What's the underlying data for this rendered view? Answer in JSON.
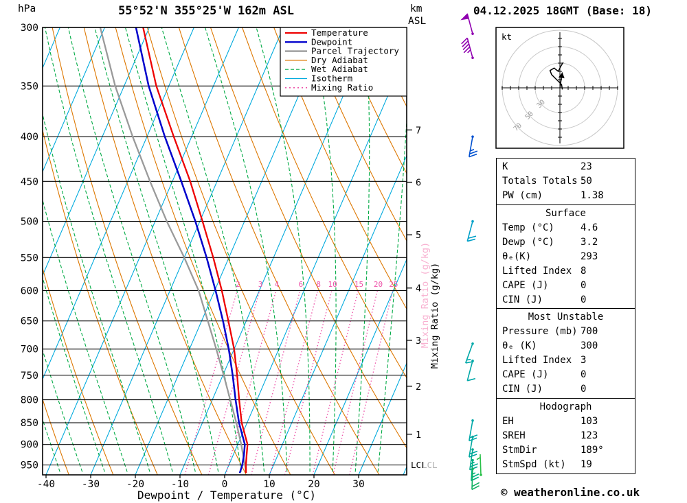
{
  "header": {
    "pressure_unit": "hPa",
    "station_title": "55°52'N 355°25'W 162m ASL",
    "altitude_unit_km": "km",
    "altitude_unit_asl": "ASL",
    "datetime_title": "04.12.2025 18GMT (Base: 18)"
  },
  "axes": {
    "x_title": "Dewpoint / Temperature (°C)",
    "x_ticks": [
      -40,
      -30,
      -20,
      -10,
      0,
      10,
      20,
      30
    ],
    "pressure_ticks": [
      300,
      350,
      400,
      450,
      500,
      550,
      600,
      650,
      700,
      750,
      800,
      850,
      900,
      950
    ],
    "km_ticks": [
      {
        "km": 1,
        "p": 876
      },
      {
        "km": 2,
        "p": 772
      },
      {
        "km": 3,
        "p": 684
      },
      {
        "km": 4,
        "p": 596
      },
      {
        "km": 5,
        "p": 518
      },
      {
        "km": 6,
        "p": 451
      },
      {
        "km": 7,
        "p": 393
      }
    ],
    "lcl_label": "LCL",
    "lcl_pressure": 949,
    "mixing_axis_label": "Mixing Ratio (g/kg)",
    "mixing_ratio_lines": [
      2,
      3,
      4,
      6,
      8,
      10,
      15,
      20,
      25
    ]
  },
  "legend": {
    "items": [
      {
        "label": "Temperature",
        "color": "#ee0000",
        "dash": "",
        "width": 2.2
      },
      {
        "label": "Dewpoint",
        "color": "#0000cc",
        "dash": "",
        "width": 2.4
      },
      {
        "label": "Parcel Trajectory",
        "color": "#9a9a9a",
        "dash": "",
        "width": 2.4
      },
      {
        "label": "Dry Adiabat",
        "color": "#dd7700",
        "dash": "",
        "width": 1.2
      },
      {
        "label": "Wet Adiabat",
        "color": "#00aa44",
        "dash": "5 3",
        "width": 1.2
      },
      {
        "label": "Isotherm",
        "color": "#00aadd",
        "dash": "",
        "width": 1.2
      },
      {
        "label": "Mixing Ratio",
        "color": "#ee55aa",
        "dash": "2 4",
        "width": 1.6
      }
    ]
  },
  "chart_data": {
    "type": "line",
    "subtype": "skew-t-log-p",
    "pressure_range_hpa": [
      300,
      975
    ],
    "temp_axis_range_c": [
      -40,
      38
    ],
    "temperature_profile": {
      "pressure_hpa": [
        970,
        950,
        925,
        900,
        850,
        800,
        750,
        700,
        650,
        600,
        550,
        500,
        450,
        400,
        350,
        300
      ],
      "temp_c": [
        4.6,
        3.8,
        3.0,
        2.2,
        -1.2,
        -4.0,
        -6.8,
        -10.0,
        -14.0,
        -18.4,
        -23.5,
        -29.4,
        -36.0,
        -44.0,
        -52.8,
        -61.4
      ]
    },
    "dewpoint_profile": {
      "pressure_hpa": [
        970,
        950,
        925,
        900,
        850,
        800,
        750,
        700,
        650,
        600,
        550,
        500,
        450,
        400,
        350,
        300
      ],
      "temp_c": [
        3.2,
        3.0,
        2.4,
        1.6,
        -1.8,
        -4.8,
        -7.8,
        -11.2,
        -15.2,
        -19.8,
        -25.0,
        -31.0,
        -38.0,
        -46.0,
        -54.5,
        -63.0
      ]
    },
    "parcel_profile": {
      "pressure_hpa": [
        970,
        950,
        925,
        900,
        850,
        800,
        750,
        700,
        650,
        600,
        550,
        500,
        450,
        400,
        350,
        300
      ],
      "temp_c": [
        4.6,
        3.6,
        2.2,
        0.8,
        -2.4,
        -6.0,
        -9.8,
        -14.0,
        -18.6,
        -23.6,
        -30.0,
        -37.4,
        -45.0,
        -53.2,
        -62.0,
        -71.0
      ]
    },
    "wind_barbs": [
      {
        "p": 305,
        "dir": 345,
        "spd": 50,
        "color": "#9000b0"
      },
      {
        "p": 325,
        "dir": 345,
        "spd": 45,
        "color": "#9000b0"
      },
      {
        "p": 400,
        "dir": 190,
        "spd": 25,
        "color": "#0050d0"
      },
      {
        "p": 500,
        "dir": 195,
        "spd": 18,
        "color": "#00a0c8"
      },
      {
        "p": 690,
        "dir": 200,
        "spd": 15,
        "color": "#00a8a8"
      },
      {
        "p": 722,
        "dir": 195,
        "spd": 12,
        "color": "#00a8a8"
      },
      {
        "p": 845,
        "dir": 190,
        "spd": 20,
        "color": "#00a8a8"
      },
      {
        "p": 882,
        "dir": 190,
        "spd": 22,
        "color": "#00a8a0"
      },
      {
        "p": 912,
        "dir": 188,
        "spd": 25,
        "color": "#00a890"
      },
      {
        "p": 938,
        "dir": 184,
        "spd": 25,
        "color": "#00b080"
      },
      {
        "p": 960,
        "dir": 182,
        "spd": 18,
        "color": "#10b060"
      },
      {
        "p": 975,
        "dir": 358,
        "spd": 5,
        "color": "#28c048",
        "dx": 12
      }
    ]
  },
  "hodograph": {
    "unit_label": "kt",
    "ring_values_kt": [
      30,
      50,
      70
    ],
    "trace_uv_kt": [
      [
        3,
        -2
      ],
      [
        2,
        4
      ],
      [
        -2,
        8
      ],
      [
        -6,
        12
      ],
      [
        -10,
        16
      ],
      [
        -12,
        21
      ],
      [
        -7,
        24
      ],
      [
        -2,
        20
      ],
      [
        1,
        26
      ],
      [
        4,
        31
      ]
    ],
    "storm_motion": {
      "dir_deg": 189,
      "spd_kt": 19
    }
  },
  "stats": {
    "sections": [
      {
        "title": null,
        "rows": [
          [
            "K",
            "23"
          ],
          [
            "Totals Totals",
            "50"
          ],
          [
            "PW (cm)",
            "1.38"
          ]
        ]
      },
      {
        "title": "Surface",
        "rows": [
          [
            "Temp (°C)",
            "4.6"
          ],
          [
            "Dewp (°C)",
            "3.2"
          ],
          [
            "θₑ(K)",
            "293"
          ],
          [
            "Lifted Index",
            "8"
          ],
          [
            "CAPE (J)",
            "0"
          ],
          [
            "CIN (J)",
            "0"
          ]
        ]
      },
      {
        "title": "Most Unstable",
        "rows": [
          [
            "Pressure (mb)",
            "700"
          ],
          [
            "θₑ (K)",
            "300"
          ],
          [
            "Lifted Index",
            "3"
          ],
          [
            "CAPE (J)",
            "0"
          ],
          [
            "CIN (J)",
            "0"
          ]
        ]
      },
      {
        "title": "Hodograph",
        "rows": [
          [
            "EH",
            "103"
          ],
          [
            "SREH",
            "123"
          ],
          [
            "StmDir",
            "189°"
          ],
          [
            "StmSpd (kt)",
            "19"
          ]
        ]
      }
    ]
  },
  "footer": {
    "copyright": "© weatheronline.co.uk"
  }
}
